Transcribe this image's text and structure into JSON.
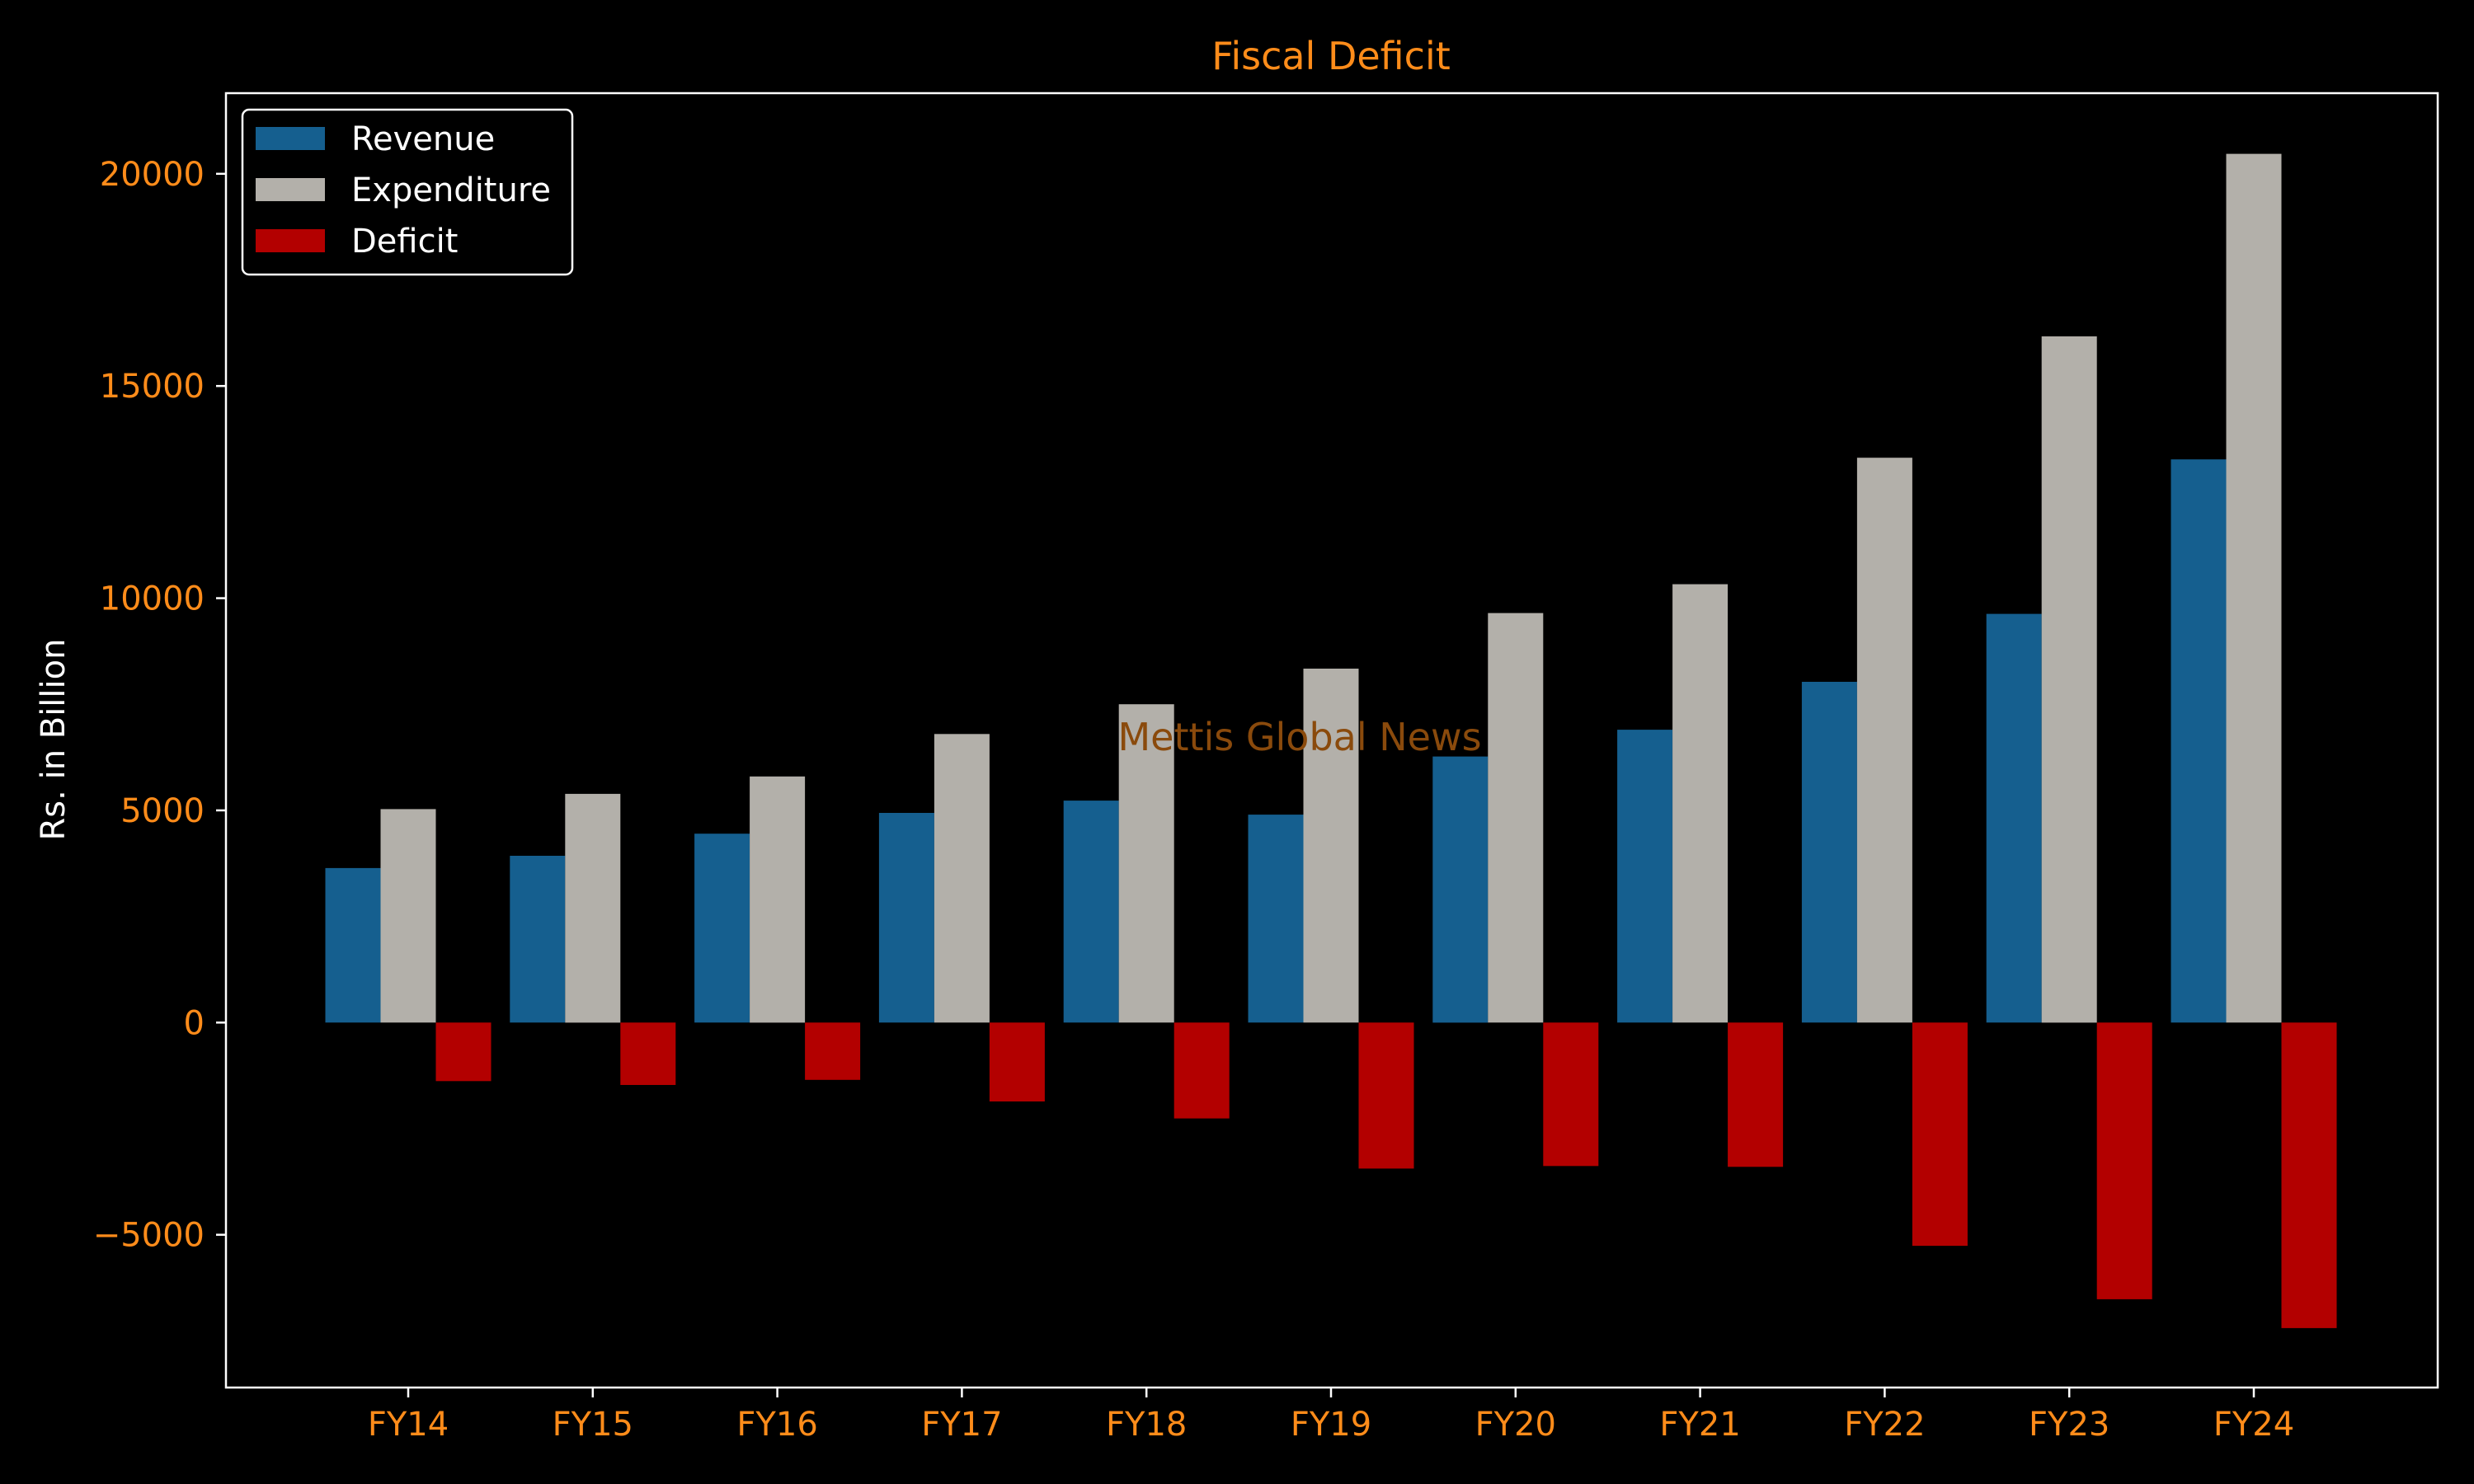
{
  "chart_data": {
    "type": "bar",
    "title": "Fiscal Deficit",
    "xlabel": "",
    "ylabel": "Rs. in Billion",
    "ylim": [
      -8600,
      21900
    ],
    "yticks": [
      -5000,
      0,
      5000,
      10000,
      15000,
      20000
    ],
    "ytick_labels": [
      "−5000",
      "0",
      "5000",
      "10000",
      "15000",
      "20000"
    ],
    "categories": [
      "FY14",
      "FY15",
      "FY16",
      "FY17",
      "FY18",
      "FY19",
      "FY20",
      "FY21",
      "FY22",
      "FY23",
      "FY24"
    ],
    "series": [
      {
        "name": "Revenue",
        "color": "#155f8f",
        "values": [
          3640,
          3930,
          4450,
          4940,
          5230,
          4900,
          6270,
          6900,
          8030,
          9630,
          13270
        ]
      },
      {
        "name": "Expenditure",
        "color": "#b3b0aa",
        "values": [
          5030,
          5390,
          5800,
          6800,
          7500,
          8340,
          9650,
          10330,
          13310,
          16170,
          20470
        ]
      },
      {
        "name": "Deficit",
        "color": "#b30000",
        "values": [
          -1380,
          -1470,
          -1350,
          -1860,
          -2260,
          -3440,
          -3380,
          -3400,
          -5260,
          -6520,
          -7200
        ]
      }
    ],
    "legend_position": "top-left",
    "grid": false,
    "watermark": "Mettis Global News",
    "colors": {
      "background": "#000000",
      "title": "#ff8c1a",
      "tick_label": "#ff8c1a",
      "axis_label": "#ffffff",
      "spine": "#ffffff",
      "legend_text": "#ffffff",
      "legend_border": "#ffffff",
      "watermark": "#8a4a0c"
    }
  }
}
